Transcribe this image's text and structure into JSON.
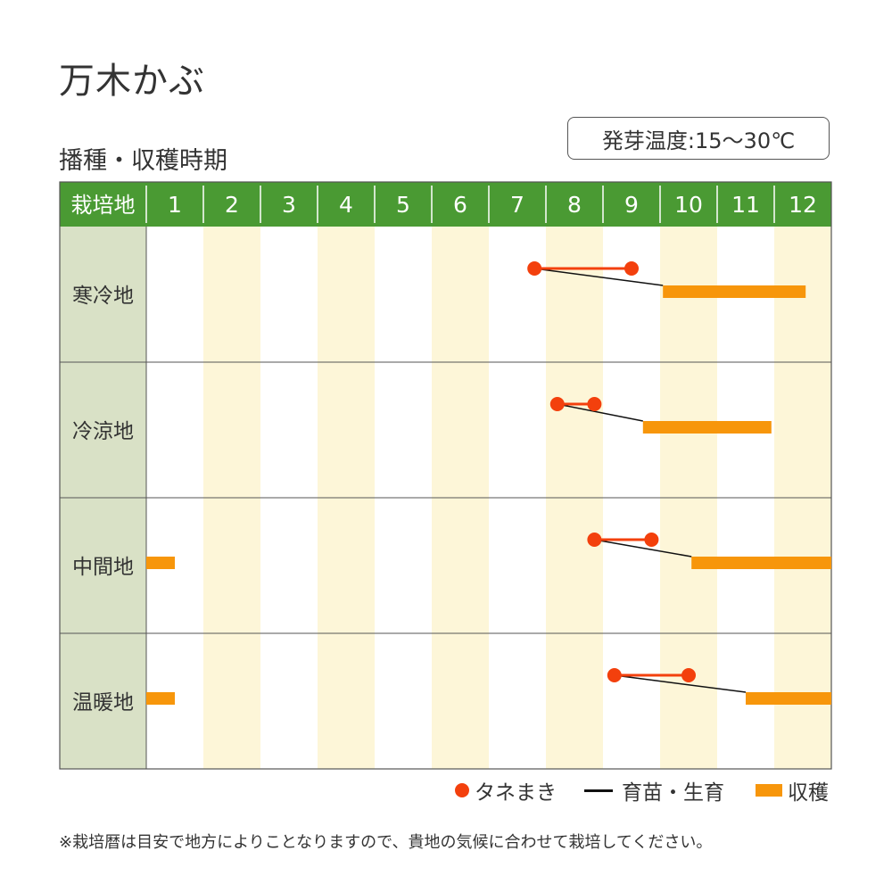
{
  "title": "万木かぶ",
  "subtitle": "播種・収穫時期",
  "germination_temp": "発芽温度:15〜30℃",
  "legend": {
    "sowing": "タネまき",
    "growing": "育苗・生育",
    "harvest": "収穫"
  },
  "note": "※栽培暦は目安で地方によりことなりますので、貴地の気候に合わせて栽培してください。",
  "colors": {
    "header_bg": "#4a9a33",
    "header_text": "#ffffff",
    "region_bg": "#d9e1c6",
    "alt_month_bg": "#fdf6d8",
    "sowing": "#f3400d",
    "growing_line": "#111111",
    "harvest": "#f7960b",
    "grid": "#555555"
  },
  "chart_data": {
    "type": "gantt",
    "header_label": "栽培地",
    "months": [
      "1",
      "2",
      "3",
      "4",
      "5",
      "6",
      "7",
      "8",
      "9",
      "10",
      "11",
      "12"
    ],
    "x_unit": "month",
    "xlim": [
      1,
      13
    ],
    "regions": [
      {
        "name": "寒冷地",
        "sowing": [
          7.8,
          9.5
        ],
        "growing": [
          7.8,
          10.05
        ],
        "harvest": [
          [
            10.05,
            12.55
          ]
        ]
      },
      {
        "name": "冷涼地",
        "sowing": [
          8.2,
          8.85
        ],
        "growing": [
          8.2,
          9.7
        ],
        "harvest": [
          [
            9.7,
            11.95
          ]
        ]
      },
      {
        "name": "中間地",
        "sowing": [
          8.85,
          9.85
        ],
        "growing": [
          8.85,
          10.55
        ],
        "harvest": [
          [
            10.55,
            13.0
          ],
          [
            1.0,
            1.5
          ]
        ]
      },
      {
        "name": "温暖地",
        "sowing": [
          9.2,
          10.5
        ],
        "growing": [
          9.2,
          11.5
        ],
        "harvest": [
          [
            11.5,
            13.0
          ],
          [
            1.0,
            1.5
          ]
        ]
      }
    ]
  }
}
